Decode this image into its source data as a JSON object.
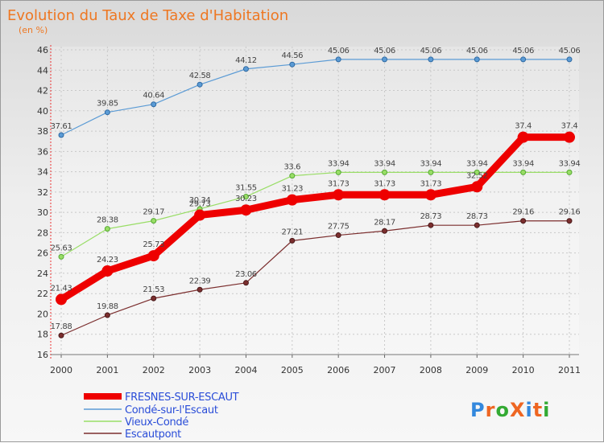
{
  "chart_data": {
    "type": "line",
    "title": "Evolution du Taux de Taxe d'Habitation",
    "subtitle": "(en %)",
    "x": [
      "2000",
      "2001",
      "2002",
      "2003",
      "2004",
      "2005",
      "2006",
      "2007",
      "2008",
      "2009",
      "2010",
      "2011"
    ],
    "ylim": [
      16,
      46
    ],
    "yticks": [
      "16",
      "18",
      "20",
      "22",
      "24",
      "26",
      "28",
      "30",
      "32",
      "34",
      "36",
      "38",
      "40",
      "42",
      "44",
      "46"
    ],
    "grid": true,
    "legend_position": "bottom-left",
    "series": [
      {
        "name": "FRESNES-SUR-ESCAUT",
        "color": "#ee0000",
        "values": [
          21.43,
          24.23,
          25.73,
          29.73,
          30.23,
          31.23,
          31.73,
          31.73,
          31.73,
          32.52,
          37.4,
          37.4
        ],
        "labels": [
          "21.43",
          "24.23",
          "25.73",
          "29.73",
          "30.23",
          "31.23",
          "31.73",
          "31.73",
          "31.73",
          "32.52",
          "37.4",
          "37.4"
        ]
      },
      {
        "name": "Condé-sur-l'Escaut",
        "color": "#5b9bd5",
        "values": [
          37.61,
          39.85,
          40.64,
          42.58,
          44.12,
          44.56,
          45.06,
          45.06,
          45.06,
          45.06,
          45.06,
          45.06
        ],
        "labels": [
          "37.61",
          "39.85",
          "40.64",
          "42.58",
          "44.12",
          "44.56",
          "45.06",
          "45.06",
          "45.06",
          "45.06",
          "45.06",
          "45.06"
        ]
      },
      {
        "name": "Vieux-Condé",
        "color": "#99dd66",
        "values": [
          25.63,
          28.38,
          29.17,
          30.34,
          31.55,
          33.6,
          33.94,
          33.94,
          33.94,
          33.94,
          33.94,
          33.94
        ],
        "labels": [
          "25.63",
          "28.38",
          "29.17",
          "30.34",
          "31.55",
          "33.6",
          "33.94",
          "33.94",
          "33.94",
          "33.94",
          "33.94",
          "33.94"
        ]
      },
      {
        "name": "Escautpont",
        "color": "#7b2e2e",
        "values": [
          17.88,
          19.88,
          21.53,
          22.39,
          23.06,
          27.21,
          27.75,
          28.17,
          28.73,
          28.73,
          29.16,
          29.16
        ],
        "labels": [
          "17.88",
          "19.88",
          "21.53",
          "22.39",
          "23.06",
          "27.21",
          "27.75",
          "28.17",
          "28.73",
          "28.73",
          "29.16",
          "29.16"
        ]
      }
    ]
  },
  "logo": {
    "text": "ProXiti",
    "letter_colors": [
      "#3388dd",
      "#ee6622",
      "#33aa33",
      "#ee6622",
      "#3388dd",
      "#ee6622",
      "#33aa33"
    ]
  }
}
